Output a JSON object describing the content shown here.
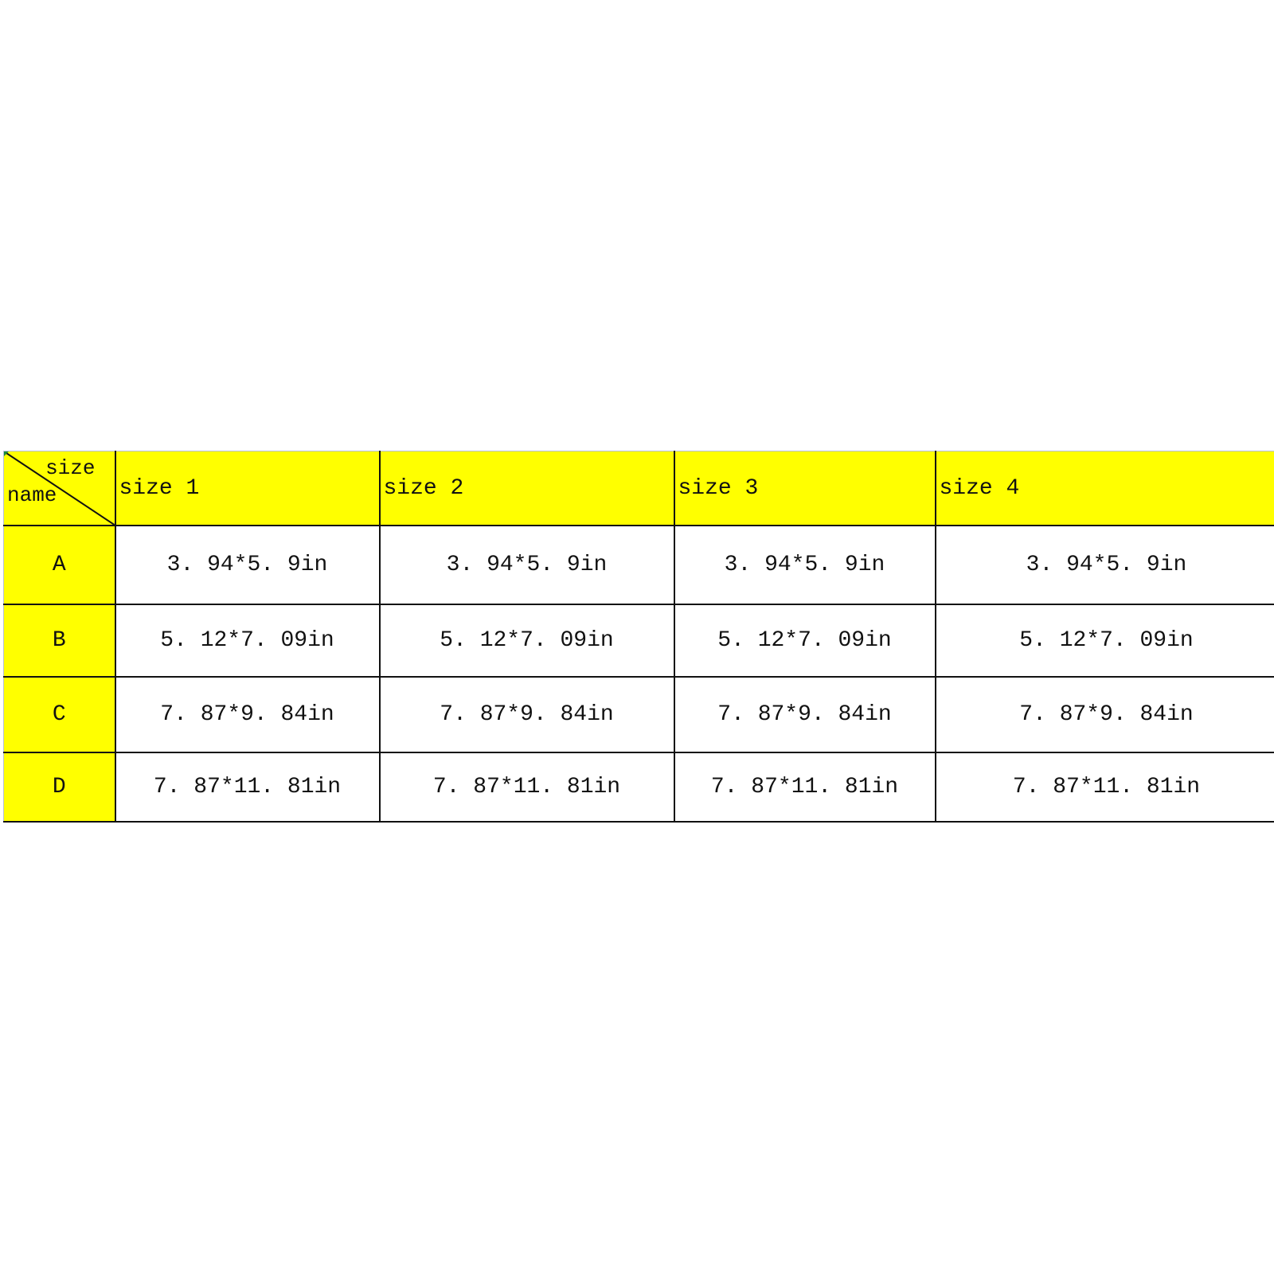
{
  "corner": {
    "top_label": "size",
    "bottom_label": "name"
  },
  "columns": [
    "size 1",
    "size 2",
    "size 3",
    "size 4"
  ],
  "rows": [
    {
      "name": "A",
      "values": [
        "3. 94*5. 9in",
        "3. 94*5. 9in",
        "3. 94*5. 9in",
        "3. 94*5. 9in"
      ]
    },
    {
      "name": "B",
      "values": [
        "5. 12*7. 09in",
        "5. 12*7. 09in",
        "5. 12*7. 09in",
        "5. 12*7. 09in"
      ]
    },
    {
      "name": "C",
      "values": [
        "7. 87*9. 84in",
        "7. 87*9. 84in",
        "7. 87*9. 84in",
        "7. 87*9. 84in"
      ]
    },
    {
      "name": "D",
      "values": [
        "7. 87*11. 81in",
        "7. 87*11. 81in",
        "7. 87*11. 81in",
        "7. 87*11. 81in"
      ]
    }
  ],
  "colors": {
    "header_fill": "#ffff00",
    "border": "#111111"
  }
}
